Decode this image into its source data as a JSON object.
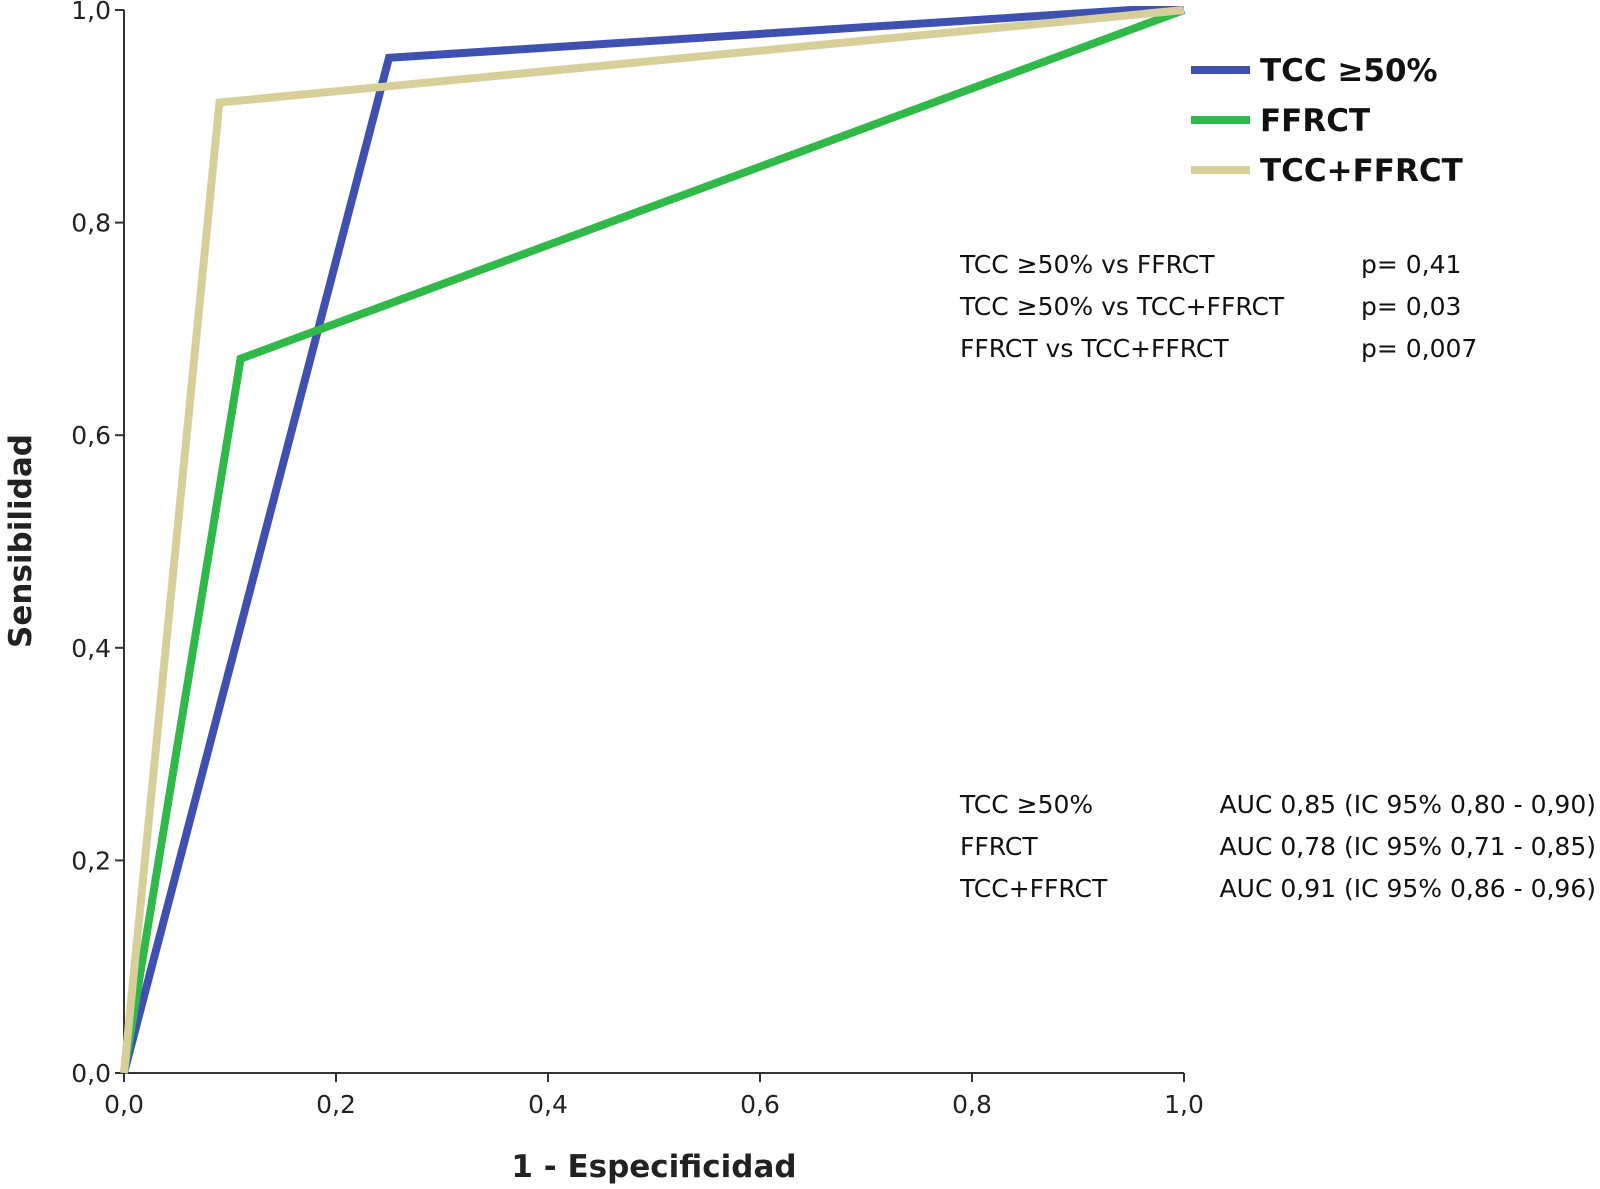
{
  "chart_data": {
    "type": "line",
    "xlabel": "1 - Especificidad",
    "ylabel": "Sensibilidad",
    "xlim": [
      0,
      1
    ],
    "ylim": [
      0,
      1
    ],
    "x_ticks": [
      "0,0",
      "0,2",
      "0,4",
      "0,6",
      "0,8",
      "1,0"
    ],
    "y_ticks": [
      "0,0",
      "0,2",
      "0,4",
      "0,6",
      "0,8",
      "1,0"
    ],
    "grid": false,
    "legend_position": "top-right",
    "series": [
      {
        "name": "TCC ≥50%",
        "color": "#3f51b0",
        "x": [
          0,
          0.25,
          0.95,
          1.0
        ],
        "y": [
          0,
          0.955,
          1.0,
          1.0
        ]
      },
      {
        "name": "FFRCT",
        "color": "#30b848",
        "x": [
          0,
          0.11,
          1.0
        ],
        "y": [
          0,
          0.672,
          1.0
        ]
      },
      {
        "name": "TCC+FFRCT",
        "color": "#d6cf9a",
        "x": [
          0,
          0.09,
          1.0
        ],
        "y": [
          0,
          0.913,
          1.0
        ]
      }
    ],
    "comparisons": [
      {
        "label": "TCC ≥50% vs FFRCT",
        "p": "p= 0,41"
      },
      {
        "label": "TCC ≥50% vs TCC+FFRCT",
        "p": "p= 0,03"
      },
      {
        "label": "FFRCT vs TCC+FFRCT",
        "p": "p= 0,007"
      }
    ],
    "auc": [
      {
        "label": "TCC ≥50%",
        "value": "AUC 0,85 (IC 95% 0,80 - 0,90)"
      },
      {
        "label": "FFRCT",
        "value": "AUC 0,78 (IC 95% 0,71 - 0,85)"
      },
      {
        "label": "TCC+FFRCT",
        "value": "AUC 0,91 (IC 95% 0,86 - 0,96)"
      }
    ]
  }
}
